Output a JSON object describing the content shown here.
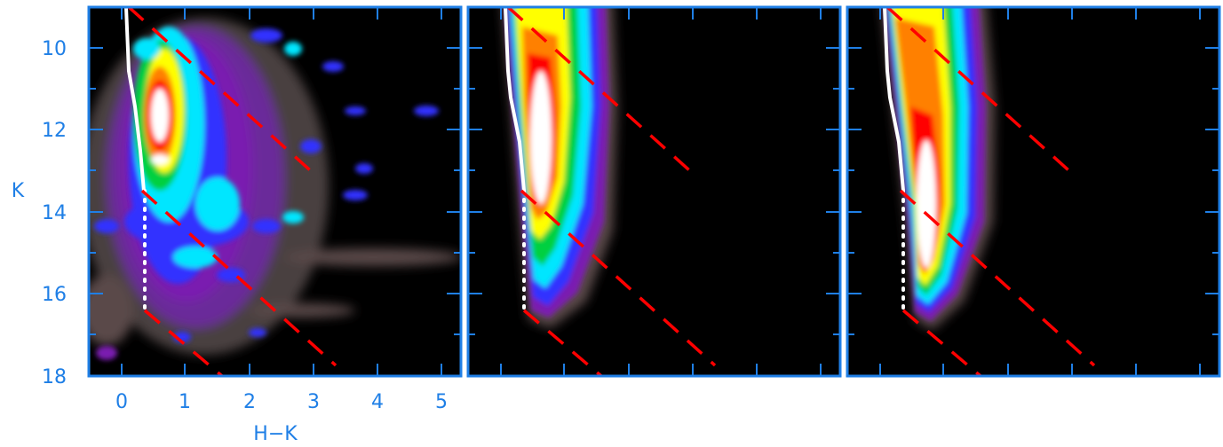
{
  "chart_data": [
    {
      "type": "heatmap",
      "panel": "observed",
      "title": "",
      "xlabel": "H−K",
      "ylabel": "K",
      "xlim": [
        -0.5,
        5.3
      ],
      "ylim": [
        18,
        9
      ],
      "y_inverted": true,
      "xticks": [
        0,
        1,
        2,
        3,
        4,
        5
      ],
      "yticks": [
        10,
        12,
        14,
        16,
        18
      ],
      "background": "#000000",
      "colormap": [
        "#000000",
        "#5a4a4a",
        "#7a1fb0",
        "#3030ff",
        "#00e6ff",
        "#00d040",
        "#ffff00",
        "#ff8000",
        "#ff0000",
        "#ffffff"
      ],
      "density_peak_K": [
        11,
        12.5
      ],
      "density_peak_HK": [
        0.4,
        1.0
      ],
      "lines": [
        {
          "style": "solid",
          "color": "#ffffff",
          "points": [
            [
              0.1,
              9
            ],
            [
              0.12,
              10.5
            ],
            [
              0.22,
              11.5
            ],
            [
              0.3,
              12.5
            ],
            [
              0.35,
              13.5
            ]
          ]
        },
        {
          "style": "dotted",
          "color": "#ffffff",
          "points": [
            [
              0.35,
              13.5
            ],
            [
              0.35,
              16.4
            ]
          ]
        },
        {
          "style": "dashed",
          "color": "#ff0000",
          "points": [
            [
              0.2,
              9
            ],
            [
              3.0,
              13.2
            ]
          ]
        },
        {
          "style": "dashed",
          "color": "#ff0000",
          "points": [
            [
              0.3,
              13.5
            ],
            [
              3.3,
              18
            ]
          ]
        },
        {
          "style": "dashed",
          "color": "#ff0000",
          "points": [
            [
              0.3,
              16.4
            ],
            [
              1.55,
              18.3
            ]
          ]
        }
      ]
    },
    {
      "type": "heatmap",
      "panel": "model-1",
      "title": "",
      "xlim": [
        -0.5,
        5.3
      ],
      "ylim": [
        18,
        9
      ],
      "y_inverted": true,
      "background": "#000000",
      "density_peak_K": [
        11,
        13.5
      ],
      "density_peak_HK": [
        0.5,
        1.0
      ],
      "lines": [
        {
          "style": "solid",
          "color": "#ffffff",
          "points": [
            [
              0.1,
              9
            ],
            [
              0.1,
              11
            ],
            [
              0.3,
              12
            ],
            [
              0.35,
              13.5
            ]
          ]
        },
        {
          "style": "dotted",
          "color": "#ffffff",
          "points": [
            [
              0.35,
              13.5
            ],
            [
              0.35,
              16.4
            ]
          ]
        },
        {
          "style": "dashed",
          "color": "#ff0000",
          "points": [
            [
              0.2,
              9
            ],
            [
              3.0,
              13.2
            ]
          ]
        },
        {
          "style": "dashed",
          "color": "#ff0000",
          "points": [
            [
              0.3,
              13.5
            ],
            [
              3.3,
              18
            ]
          ]
        },
        {
          "style": "dashed",
          "color": "#ff0000",
          "points": [
            [
              0.3,
              16.4
            ],
            [
              1.55,
              18.3
            ]
          ]
        }
      ]
    },
    {
      "type": "heatmap",
      "panel": "model-2",
      "title": "",
      "xlim": [
        -0.5,
        5.3
      ],
      "ylim": [
        18,
        9
      ],
      "y_inverted": true,
      "background": "#000000",
      "density_peak_K": [
        12.5,
        15.8
      ],
      "density_peak_HK": [
        0.5,
        0.9
      ],
      "lines": [
        {
          "style": "solid",
          "color": "#ffffff",
          "points": [
            [
              0.1,
              9
            ],
            [
              0.1,
              11
            ],
            [
              0.3,
              12
            ],
            [
              0.35,
              13.5
            ]
          ]
        },
        {
          "style": "dotted",
          "color": "#ffffff",
          "points": [
            [
              0.35,
              13.5
            ],
            [
              0.35,
              16.4
            ]
          ]
        },
        {
          "style": "dashed",
          "color": "#ff0000",
          "points": [
            [
              0.2,
              9
            ],
            [
              3.0,
              13.2
            ]
          ]
        },
        {
          "style": "dashed",
          "color": "#ff0000",
          "points": [
            [
              0.3,
              13.5
            ],
            [
              3.3,
              18
            ]
          ]
        },
        {
          "style": "dashed",
          "color": "#ff0000",
          "points": [
            [
              0.3,
              16.4
            ],
            [
              1.55,
              18.3
            ]
          ]
        }
      ]
    }
  ],
  "colors": {
    "axis": "#1f7fe6",
    "frame": "#1f7fe6",
    "isochrone": "#ffffff",
    "reddening": "#ff0000"
  }
}
